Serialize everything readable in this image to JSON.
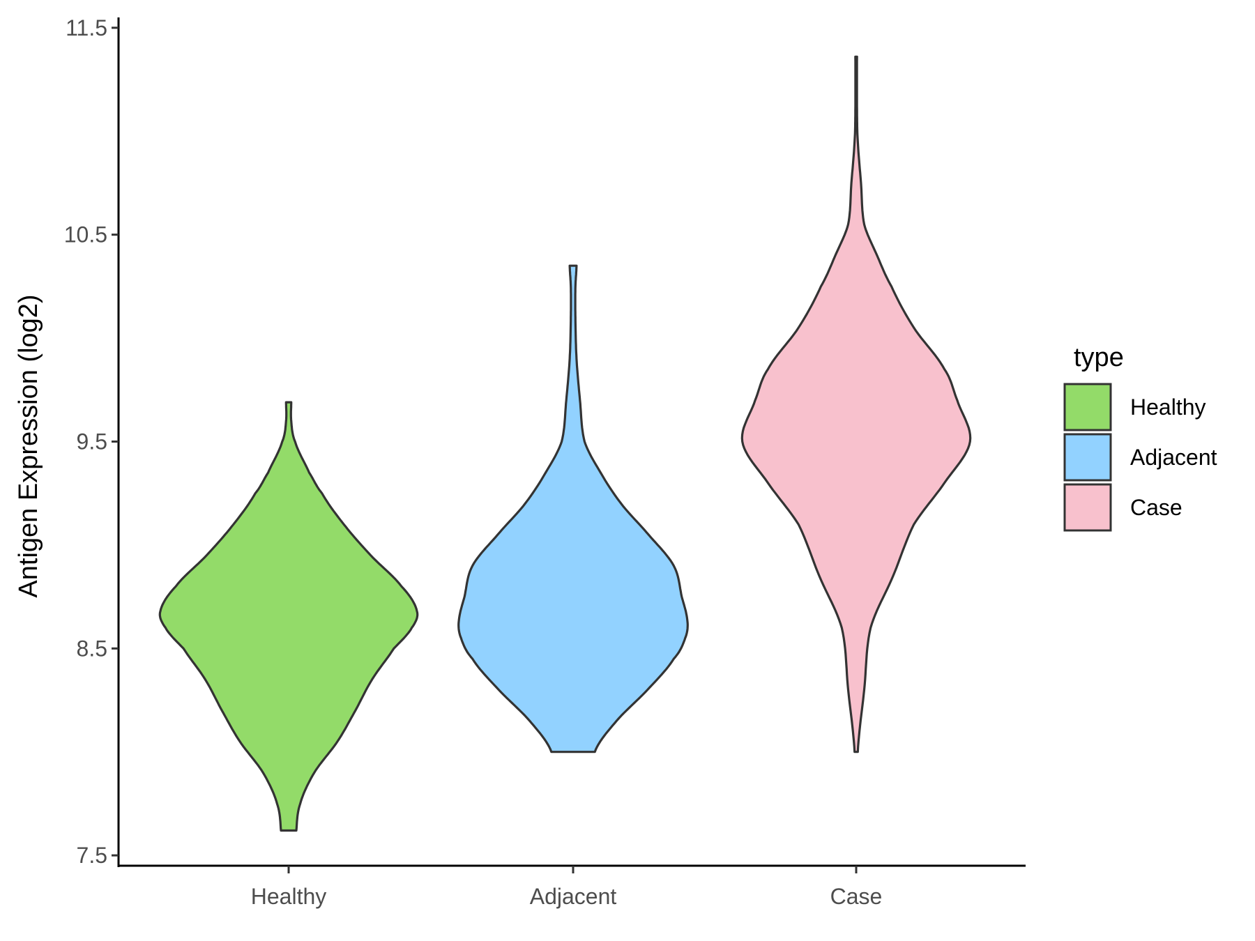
{
  "chart_data": {
    "type": "violin",
    "categories": [
      "Healthy",
      "Adjacent",
      "Case"
    ],
    "ylabel": "Antigen Expression (log2)",
    "xlabel": "",
    "ylim": [
      7.45,
      11.55
    ],
    "yticks": [
      {
        "value": 7.5,
        "label": "7.5"
      },
      {
        "value": 8.5,
        "label": "8.5"
      },
      {
        "value": 9.5,
        "label": "9.5"
      },
      {
        "value": 10.5,
        "label": "10.5"
      },
      {
        "value": 11.5,
        "label": "11.5"
      }
    ],
    "legend": {
      "title": "type",
      "position": "right",
      "entries": [
        {
          "label": "Healthy",
          "color": "#93DB69"
        },
        {
          "label": "Adjacent",
          "color": "#92D2FF"
        },
        {
          "label": "Case",
          "color": "#F8C1CD"
        }
      ]
    },
    "series": [
      {
        "category": "Healthy",
        "color": "#93DB69",
        "min": 7.62,
        "max": 9.69,
        "profile": [
          [
            7.62,
            0.06
          ],
          [
            7.75,
            0.09
          ],
          [
            7.9,
            0.2
          ],
          [
            8.05,
            0.38
          ],
          [
            8.2,
            0.52
          ],
          [
            8.35,
            0.65
          ],
          [
            8.5,
            0.82
          ],
          [
            8.6,
            0.96
          ],
          [
            8.68,
            1.0
          ],
          [
            8.8,
            0.88
          ],
          [
            8.95,
            0.64
          ],
          [
            9.1,
            0.43
          ],
          [
            9.25,
            0.26
          ],
          [
            9.35,
            0.16
          ],
          [
            9.5,
            0.05
          ],
          [
            9.6,
            0.02
          ],
          [
            9.69,
            0.02
          ]
        ]
      },
      {
        "category": "Adjacent",
        "color": "#92D2FF",
        "min": 8.0,
        "max": 10.35,
        "profile": [
          [
            8.0,
            0.19
          ],
          [
            8.15,
            0.38
          ],
          [
            8.3,
            0.65
          ],
          [
            8.45,
            0.88
          ],
          [
            8.55,
            0.98
          ],
          [
            8.63,
            1.0
          ],
          [
            8.75,
            0.95
          ],
          [
            8.9,
            0.88
          ],
          [
            9.05,
            0.66
          ],
          [
            9.2,
            0.42
          ],
          [
            9.35,
            0.24
          ],
          [
            9.5,
            0.1
          ],
          [
            9.7,
            0.06
          ],
          [
            9.9,
            0.03
          ],
          [
            10.1,
            0.02
          ],
          [
            10.25,
            0.02
          ],
          [
            10.35,
            0.03
          ]
        ]
      },
      {
        "category": "Case",
        "color": "#F8C1CD",
        "min": 8.0,
        "max": 11.36,
        "profile": [
          [
            8.0,
            0.01
          ],
          [
            8.3,
            0.05
          ],
          [
            8.6,
            0.09
          ],
          [
            8.85,
            0.23
          ],
          [
            9.1,
            0.36
          ],
          [
            9.3,
            0.55
          ],
          [
            9.5,
            0.71
          ],
          [
            9.7,
            0.63
          ],
          [
            9.85,
            0.55
          ],
          [
            10.05,
            0.36
          ],
          [
            10.25,
            0.22
          ],
          [
            10.4,
            0.13
          ],
          [
            10.55,
            0.05
          ],
          [
            10.75,
            0.03
          ],
          [
            10.95,
            0.01
          ],
          [
            11.1,
            0.005
          ],
          [
            11.36,
            0.005
          ]
        ]
      }
    ]
  }
}
